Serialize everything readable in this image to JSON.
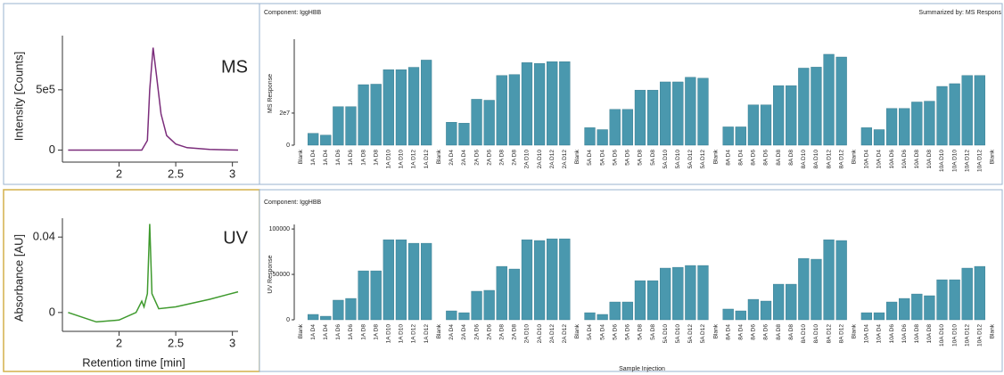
{
  "chart_data": [
    {
      "type": "line",
      "y_label": "Intensity [Counts]",
      "annotation": "MS",
      "x": [
        1.55,
        2.0,
        2.2,
        2.25,
        2.27,
        2.3,
        2.33,
        2.37,
        2.42,
        2.5,
        2.6,
        2.8,
        3.05
      ],
      "values": [
        0,
        0,
        0,
        80000,
        500000,
        850000,
        620000,
        300000,
        120000,
        50000,
        20000,
        5000,
        0
      ],
      "color": "#7b2d7b",
      "xlim": [
        1.5,
        3.05
      ],
      "ylim": [
        -100000,
        950000
      ],
      "xticks": [
        2,
        2.5,
        3
      ],
      "yticks": [
        0,
        {
          "value": 500000,
          "label": "5e5"
        }
      ]
    },
    {
      "type": "bar",
      "title": "Component: IggHBB",
      "subtitle": "Summarized by: MS Respons",
      "y_label": "MS Response",
      "categories": [
        "Blank",
        "1A D4",
        "1A D4",
        "1A D6",
        "1A D6",
        "1A D8",
        "1A D8",
        "1A D10",
        "1A D10",
        "1A D12",
        "1A D12",
        "Blank",
        "2A D4",
        "2A D4",
        "2A D6",
        "2A D6",
        "2A D8",
        "2A D8",
        "2A D10",
        "2A D10",
        "2A D12",
        "2A D12",
        "Blank",
        "5A D4",
        "5A D4",
        "5A D6",
        "5A D6",
        "5A D8",
        "5A D8",
        "5A D10",
        "5A D10",
        "5A D12",
        "5A D12",
        "Blank",
        "8A D4",
        "8A D4",
        "8A D6",
        "8A D6",
        "8A D8",
        "8A D8",
        "8A D10",
        "8A D10",
        "8A D12",
        "8A D12",
        "Blank",
        "10A D4",
        "10A D4",
        "10A D6",
        "10A D6",
        "10A D8",
        "10A D8",
        "10A D10",
        "10A D10",
        "10A D12",
        "10A D12",
        "Blank"
      ],
      "values": [
        0,
        7400000,
        6300000,
        24000000,
        24000000,
        37700000,
        38000000,
        47000000,
        47000000,
        48500000,
        53000000,
        0,
        14300000,
        13700000,
        28600000,
        28000000,
        43400000,
        44000000,
        51400000,
        50900000,
        52000000,
        52000000,
        0,
        10900000,
        9700000,
        22300000,
        22300000,
        34300000,
        34300000,
        39400000,
        39400000,
        42300000,
        41700000,
        0,
        11400000,
        11400000,
        25100000,
        25100000,
        37100000,
        37100000,
        48000000,
        48600000,
        56600000,
        54900000,
        0,
        10900000,
        9700000,
        22900000,
        22900000,
        26900000,
        27400000,
        36600000,
        38300000,
        43400000,
        43400000,
        0
      ],
      "color": "#4a98ae",
      "ylim": [
        0,
        66000000
      ],
      "yticks": [
        0,
        {
          "value": 20000000,
          "label": "2e7"
        }
      ]
    },
    {
      "type": "line",
      "y_label": "Absorbance [AU]",
      "x_label": "Retention time [min]",
      "annotation": "UV",
      "x": [
        1.55,
        1.7,
        1.8,
        2.0,
        2.15,
        2.2,
        2.22,
        2.25,
        2.27,
        2.29,
        2.35,
        2.5,
        2.8,
        3.05
      ],
      "values": [
        0,
        -0.003,
        -0.005,
        -0.004,
        0,
        0.006,
        0.003,
        0.01,
        0.047,
        0.01,
        0.002,
        0.003,
        0.007,
        0.011
      ],
      "color": "#3f9a2e",
      "xlim": [
        1.5,
        3.05
      ],
      "ylim": [
        -0.01,
        0.05
      ],
      "xticks": [
        2,
        2.5,
        3
      ],
      "yticks": [
        0,
        0.04
      ]
    },
    {
      "type": "bar",
      "title": "Component: IggHBB",
      "y_label": "UV Response",
      "x_label": "Sample Injection",
      "categories": [
        "Blank",
        "1A D4",
        "1A D4",
        "1A D6",
        "1A D6",
        "1A D8",
        "1A D8",
        "1A D10",
        "1A D10",
        "1A D12",
        "1A D12",
        "Blank",
        "2A D4",
        "2A D4",
        "2A D6",
        "2A D6",
        "2A D8",
        "2A D8",
        "2A D10",
        "2A D10",
        "2A D12",
        "2A D12",
        "Blank",
        "5A D4",
        "5A D4",
        "5A D6",
        "5A D6",
        "5A D8",
        "5A D8",
        "5A D10",
        "5A D10",
        "5A D12",
        "5A D12",
        "Blank",
        "8A D4",
        "8A D4",
        "8A D6",
        "8A D6",
        "8A D8",
        "8A D8",
        "8A D10",
        "8A D10",
        "8A D12",
        "8A D12",
        "Blank",
        "10A D4",
        "10A D4",
        "10A D6",
        "10A D6",
        "10A D8",
        "10A D8",
        "10A D10",
        "10A D10",
        "10A D12",
        "10A D12",
        "Blank"
      ],
      "values": [
        0,
        5900,
        3900,
        21600,
        23500,
        53900,
        53900,
        88200,
        88200,
        84300,
        84300,
        0,
        9800,
        7800,
        31400,
        32400,
        58800,
        55900,
        88200,
        87300,
        89200,
        89200,
        0,
        7800,
        5900,
        19600,
        19600,
        43100,
        43100,
        56900,
        57800,
        59800,
        59800,
        0,
        11800,
        9800,
        22500,
        20600,
        39200,
        39200,
        67600,
        66700,
        88200,
        87300,
        0,
        7800,
        7800,
        19600,
        23500,
        28400,
        26500,
        44100,
        44100,
        56900,
        58800,
        0
      ],
      "color": "#4a98ae",
      "ylim": [
        0,
        105000
      ],
      "yticks": [
        0,
        50000,
        100000
      ]
    }
  ]
}
